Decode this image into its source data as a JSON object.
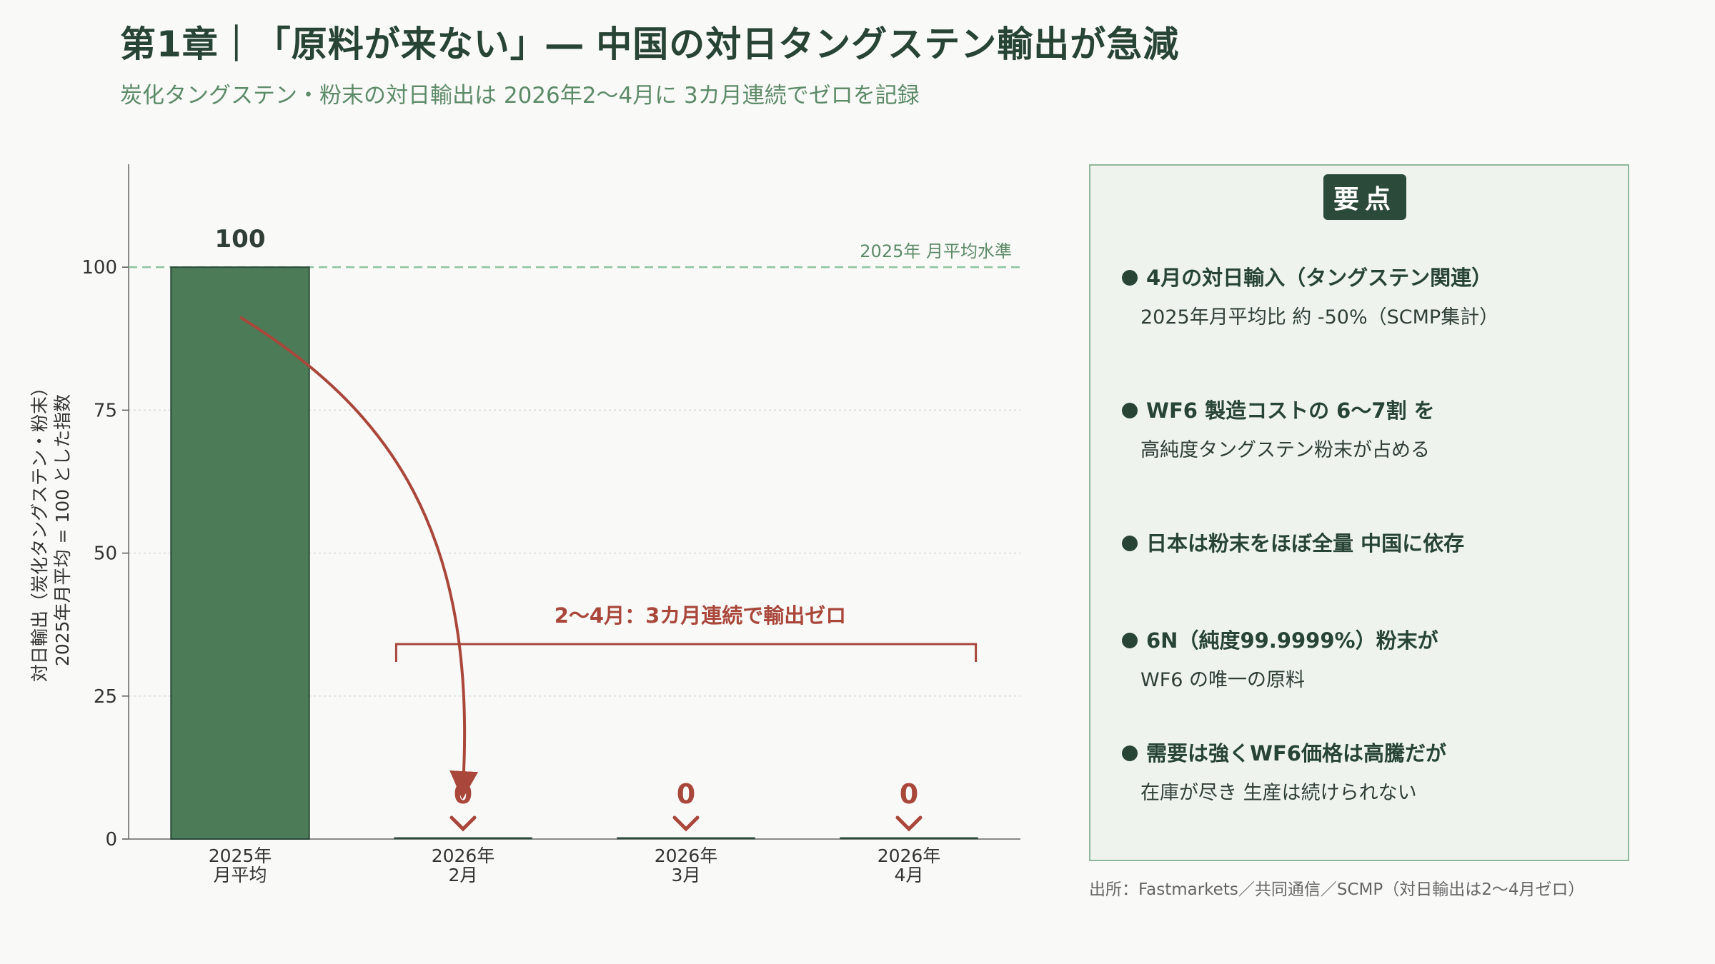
{
  "header": {
    "title": "第1章｜「原料が来ない」― 中国の対日タングステン輸出が急減",
    "subtitle": "炭化タングステン・粉末の対日輸出は 2026年2〜4月に 3カ月連続でゼロを記録"
  },
  "chart_data": {
    "type": "bar",
    "categories": [
      [
        "2025年",
        "月平均"
      ],
      [
        "2026年",
        "2月"
      ],
      [
        "2026年",
        "3月"
      ],
      [
        "2026年",
        "4月"
      ]
    ],
    "values": [
      100,
      0,
      0,
      0
    ],
    "value_labels": [
      "100",
      "0",
      "0",
      "0"
    ],
    "ylabel_lines": [
      "対日輸出（炭化タングステン・粉末）",
      "2025年月平均 = 100 とした指数"
    ],
    "ylim": [
      0,
      118
    ],
    "yticks": [
      0,
      25,
      50,
      75,
      100
    ],
    "grid": true,
    "reference_line": {
      "value": 100,
      "label": "2025年 月平均水準"
    },
    "annotation": "2〜4月：3カ月連続で輸出ゼロ",
    "colors": {
      "bar": "#4b7b57",
      "zero": "#a9473b",
      "accent": "#a9473b",
      "reference": "#8fc3a0",
      "text": "#274435"
    }
  },
  "panel": {
    "badge": "要点",
    "points": [
      {
        "head": "4月の対日輸入（タングステン関連）",
        "sub": "2025年月平均比 約 -50%（SCMP集計）"
      },
      {
        "head": "WF6 製造コストの 6〜7割 を",
        "sub": "高純度タングステン粉末が占める"
      },
      {
        "head": "日本は粉末をほぼ全量 中国に依存",
        "sub": ""
      },
      {
        "head": "6N（純度99.9999%）粉末が",
        "sub": "WF6 の唯一の原料"
      },
      {
        "head": "需要は強くWF6価格は高騰だが",
        "sub": "在庫が尽き 生産は続けられない"
      }
    ]
  },
  "source": "出所：Fastmarkets／共同通信／SCMP（対日輸出は2〜4月ゼロ）"
}
